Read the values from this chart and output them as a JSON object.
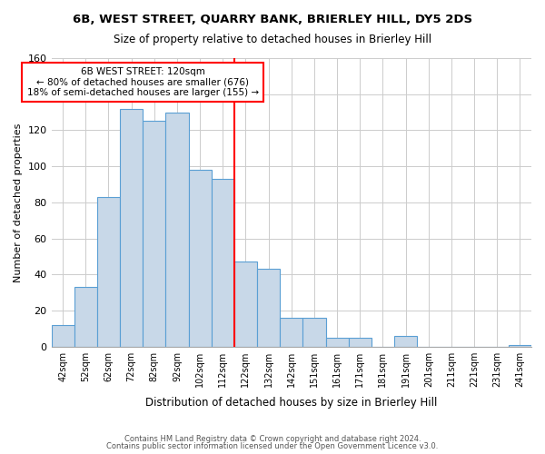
{
  "title1": "6B, WEST STREET, QUARRY BANK, BRIERLEY HILL, DY5 2DS",
  "title2": "Size of property relative to detached houses in Brierley Hill",
  "xlabel": "Distribution of detached houses by size in Brierley Hill",
  "ylabel": "Number of detached properties",
  "footer1": "Contains HM Land Registry data © Crown copyright and database right 2024.",
  "footer2": "Contains public sector information licensed under the Open Government Licence v3.0.",
  "bin_labels": [
    "42sqm",
    "52sqm",
    "62sqm",
    "72sqm",
    "82sqm",
    "92sqm",
    "102sqm",
    "112sqm",
    "122sqm",
    "132sqm",
    "142sqm",
    "151sqm",
    "161sqm",
    "171sqm",
    "181sqm",
    "191sqm",
    "201sqm",
    "211sqm",
    "221sqm",
    "231sqm",
    "241sqm"
  ],
  "bar_values": [
    12,
    33,
    83,
    132,
    125,
    130,
    98,
    93,
    47,
    43,
    16,
    16,
    5,
    5,
    0,
    6,
    0,
    0,
    0,
    0,
    1
  ],
  "bar_color": "#c8d8e8",
  "bar_edge_color": "#5a9fd4",
  "vline_color": "red",
  "annotation_title": "6B WEST STREET: 120sqm",
  "annotation_line1": "← 80% of detached houses are smaller (676)",
  "annotation_line2": "18% of semi-detached houses are larger (155) →",
  "annotation_box_color": "white",
  "annotation_box_edge": "red",
  "ylim": [
    0,
    160
  ],
  "yticks": [
    0,
    20,
    40,
    60,
    80,
    100,
    120,
    140,
    160
  ]
}
